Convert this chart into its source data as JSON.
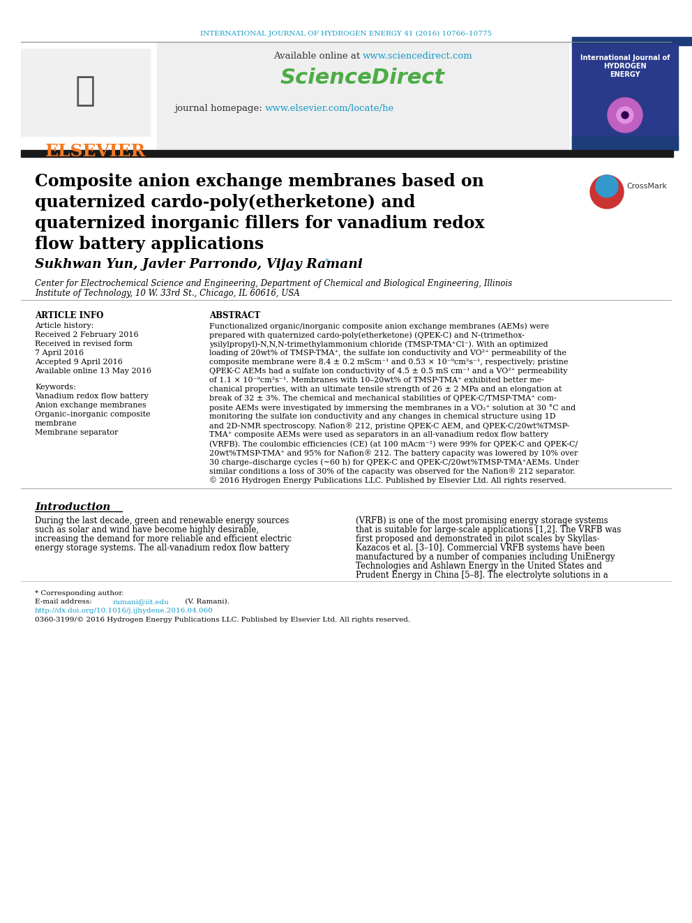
{
  "journal_header": "INTERNATIONAL JOURNAL OF HYDROGEN ENERGY 41 (2016) 10766–10775",
  "journal_header_color": "#1a9bc7",
  "available_online_text": "Available online at ",
  "url_sciencedirect": "www.sciencedirect.com",
  "url_color": "#1a9bc7",
  "sciencedirect_text": "ScienceDirect",
  "sciencedirect_color": "#4cac46",
  "journal_homepage_text": "journal homepage: ",
  "url_elsevier": "www.elsevier.com/locate/he",
  "elsevier_color": "#1a9bc7",
  "title_line1": "Composite anion exchange membranes based on",
  "title_line2": "quaternized cardo-poly(etherketone) and",
  "title_line3": "quaternized inorganic fillers for vanadium redox",
  "title_line4": "flow battery applications",
  "title_color": "#000000",
  "authors": "Sukhwan Yun, Javier Parrondo, Vijay Ramani",
  "authors_color": "#000000",
  "affiliation": "Center for Electrochemical Science and Engineering, Department of Chemical and Biological Engineering, Illinois\nInstitute of Technology, 10 W. 33rd St., Chicago, IL 60616, USA",
  "affiliation_color": "#000000",
  "article_info_header": "ARTICLE INFO",
  "abstract_header": "ABSTRACT",
  "article_history_label": "Article history:",
  "received_1": "Received 2 February 2016",
  "received_revised": "Received in revised form",
  "received_revised_date": "7 April 2016",
  "accepted": "Accepted 9 April 2016",
  "available_online": "Available online 13 May 2016",
  "keywords_label": "Keywords:",
  "keyword1": "Vanadium redox flow battery",
  "keyword2": "Anion exchange membranes",
  "keyword3": "Organic–inorganic composite",
  "keyword4": "membrane",
  "keyword5": "Membrane separator",
  "abstract_text": "Functionalized organic/inorganic composite anion exchange membranes (AEMs) were\nprepared with quaternized cardo-poly(etherketone) (QPEK-C) and N-(trimethox-\nysilylpropyl)-N,N,N-trimethylammonium chloride (TMSP-TMA⁺Cl⁻). With an optimized\nloading of 20wt% of TMSP-TMA⁺, the sulfate ion conductivity and VO²⁺ permeability of the\ncomposite membrane were 8.4 ± 0.2 mScm⁻¹ and 0.53 × 10⁻⁹cm²s⁻¹, respectively; pristine\nQPEK-C AEMs had a sulfate ion conductivity of 4.5 ± 0.5 mS cm⁻¹ and a VO²⁺ permeability\nof 1.1 × 10⁻⁹cm²s⁻¹. Membranes with 10–20wt% of TMSP-TMA⁺ exhibited better me-\nchanical properties, with an ultimate tensile strength of 26 ± 2 MPa and an elongation at\nbreak of 32 ± 3%. The chemical and mechanical stabilities of QPEK-C/TMSP-TMA⁺ com-\nposite AEMs were investigated by immersing the membranes in a VO₂⁺ solution at 30 °C and\nmonitoring the sulfate ion conductivity and any changes in chemical structure using 1D\nand 2D-NMR spectroscopy. Nafion® 212, pristine QPEK-C AEM, and QPEK-C/20wt%TMSP-\nTMA⁺ composite AEMs were used as separators in an all-vanadium redox flow battery\n(VRFB). The coulombic efficiencies (CE) (at 100 mAcm⁻²) were 99% for QPEK-C and QPEK-C/\n20wt%TMSP-TMA⁺ and 95% for Nafion® 212. The battery capacity was lowered by 10% over\n30 charge–discharge cycles (~60 h) for QPEK-C and QPEK-C/20wt%TMSP-TMA⁺AEMs. Under\nsimilar conditions a loss of 30% of the capacity was observed for the Nafion® 212 separator.\n© 2016 Hydrogen Energy Publications LLC. Published by Elsevier Ltd. All rights reserved.",
  "intro_header": "Introduction",
  "intro_para1": "During the last decade, green and renewable energy sources\nsuch as solar and wind have become highly desirable,\nincreasing the demand for more reliable and efficient electric\nenergy storage systems. The all-vanadium redox flow battery",
  "intro_para2": "(VRFB) is one of the most promising energy storage systems\nthat is suitable for large-scale applications [1,2]. The VRFB was\nfirst proposed and demonstrated in pilot scales by Skyllas-\nKazacos et al. [3–10]. Commercial VRFB systems have been\nmanufactured by a number of companies including UniEnergy\nTechnologies and Ashlawn Energy in the United States and\nPrudent Energy in China [5–8]. The electrolyte solutions in a",
  "footer_note": "* Corresponding author.",
  "footer_email_label": "E-mail address: ",
  "footer_email": "ramani@iit.edu",
  "footer_email_color": "#1a9bc7",
  "footer_email_suffix": " (V. Ramani).",
  "footer_doi_label": "http://dx.doi.org/10.1016/j.ijhydene.2016.04.060",
  "footer_doi_color": "#1a9bc7",
  "footer_issn": "0360-3199/© 2016 Hydrogen Energy Publications LLC. Published by Elsevier Ltd. All rights reserved.",
  "bg_color": "#ffffff",
  "header_box_color": "#e8e8e8",
  "dark_bar_color": "#1a1a2e",
  "elsevier_orange": "#f47920",
  "blue_header_bg": "#1c3d7a"
}
